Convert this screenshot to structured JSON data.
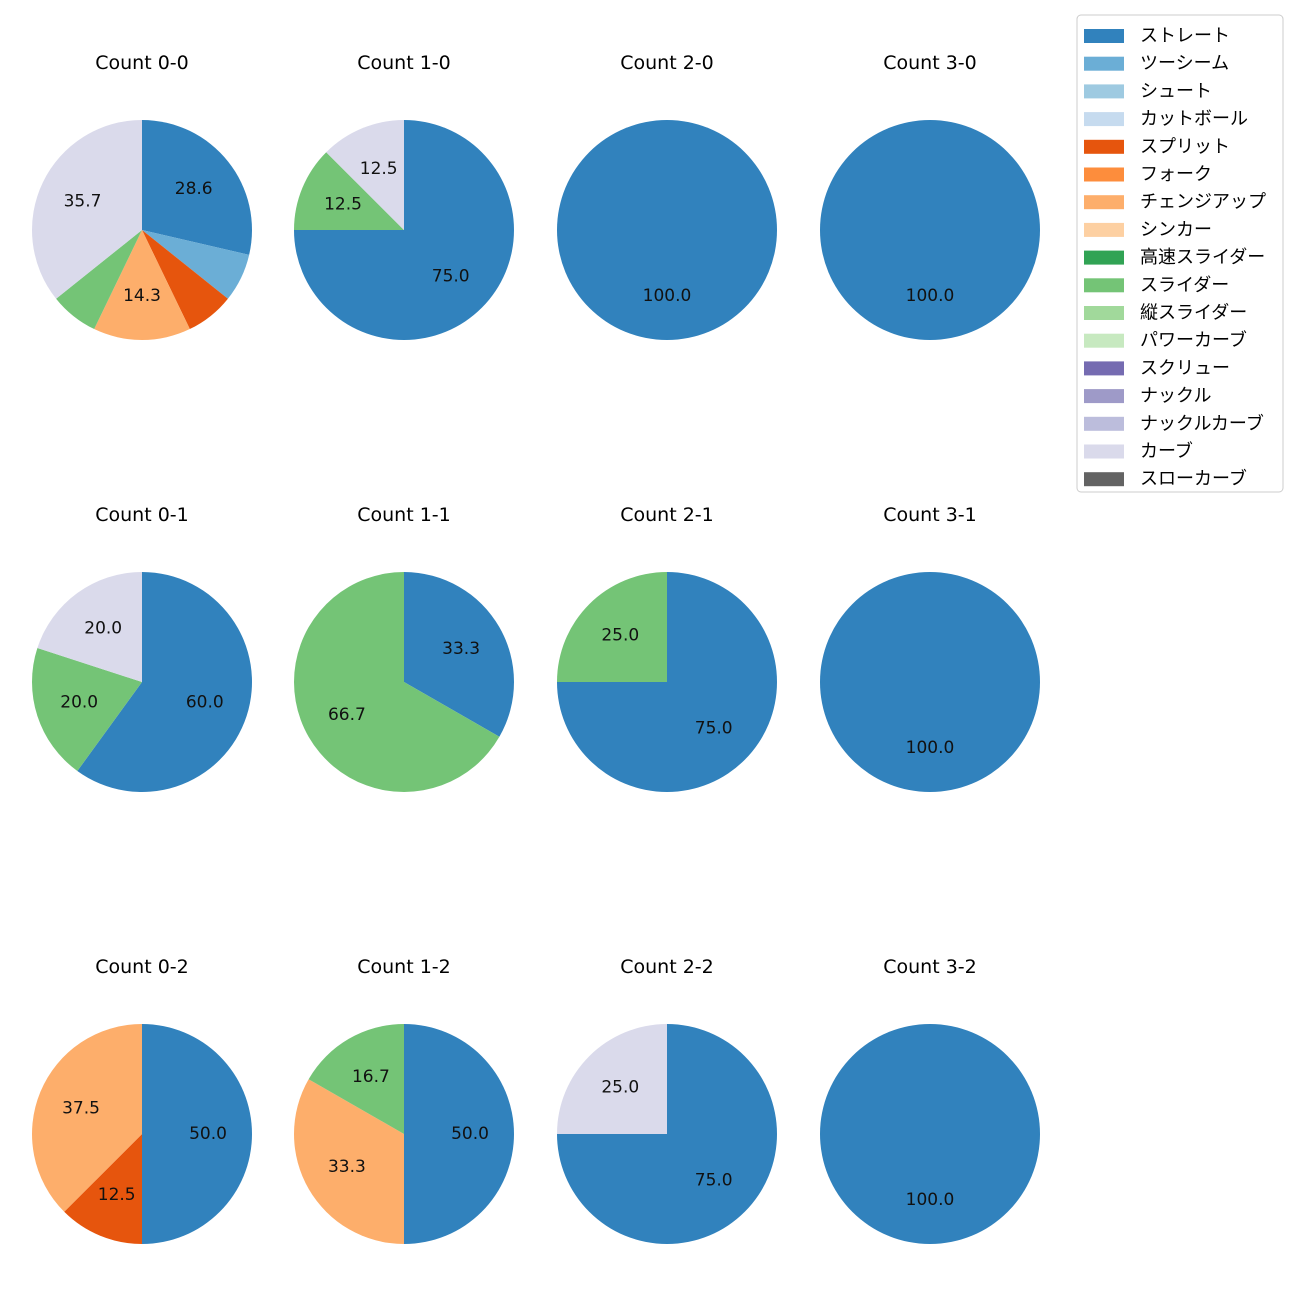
{
  "chart_data": {
    "type": "pie",
    "start_angle": "top, clockwise",
    "label_format": "percent, one decimal",
    "legend_position": "top-right",
    "legend": [
      {
        "name": "ストレート",
        "color": "#3182bd"
      },
      {
        "name": "ツーシーム",
        "color": "#6baed6"
      },
      {
        "name": "シュート",
        "color": "#9ecae1"
      },
      {
        "name": "カットボール",
        "color": "#c6dbef"
      },
      {
        "name": "スプリット",
        "color": "#e6550d"
      },
      {
        "name": "フォーク",
        "color": "#fd8d3c"
      },
      {
        "name": "チェンジアップ",
        "color": "#fdae6b"
      },
      {
        "name": "シンカー",
        "color": "#fdd0a2"
      },
      {
        "name": "高速スライダー",
        "color": "#31a354"
      },
      {
        "name": "スライダー",
        "color": "#74c476"
      },
      {
        "name": "縦スライダー",
        "color": "#a1d99b"
      },
      {
        "name": "パワーカーブ",
        "color": "#c7e9c0"
      },
      {
        "name": "スクリュー",
        "color": "#756bb1"
      },
      {
        "name": "ナックル",
        "color": "#9e9ac8"
      },
      {
        "name": "ナックルカーブ",
        "color": "#bcbddc"
      },
      {
        "name": "カーブ",
        "color": "#dadaeb"
      },
      {
        "name": "スローカーブ",
        "color": "#636363"
      }
    ],
    "charts": [
      {
        "title": "Count 0-0",
        "slices": [
          {
            "pitch": "ストレート",
            "value": 28.6,
            "label": "28.6"
          },
          {
            "pitch": "ツーシーム",
            "value": 7.1,
            "label": ""
          },
          {
            "pitch": "スプリット",
            "value": 7.1,
            "label": ""
          },
          {
            "pitch": "チェンジアップ",
            "value": 14.3,
            "label": "14.3"
          },
          {
            "pitch": "スライダー",
            "value": 7.1,
            "label": ""
          },
          {
            "pitch": "カーブ",
            "value": 35.7,
            "label": "35.7"
          }
        ]
      },
      {
        "title": "Count 1-0",
        "slices": [
          {
            "pitch": "ストレート",
            "value": 75.0,
            "label": "75.0"
          },
          {
            "pitch": "スライダー",
            "value": 12.5,
            "label": "12.5"
          },
          {
            "pitch": "カーブ",
            "value": 12.5,
            "label": "12.5"
          }
        ]
      },
      {
        "title": "Count 2-0",
        "slices": [
          {
            "pitch": "ストレート",
            "value": 100.0,
            "label": "100.0"
          }
        ]
      },
      {
        "title": "Count 3-0",
        "slices": [
          {
            "pitch": "ストレート",
            "value": 100.0,
            "label": "100.0"
          }
        ]
      },
      {
        "title": "Count 0-1",
        "slices": [
          {
            "pitch": "ストレート",
            "value": 60.0,
            "label": "60.0"
          },
          {
            "pitch": "スライダー",
            "value": 20.0,
            "label": "20.0"
          },
          {
            "pitch": "カーブ",
            "value": 20.0,
            "label": "20.0"
          }
        ]
      },
      {
        "title": "Count 1-1",
        "slices": [
          {
            "pitch": "ストレート",
            "value": 33.3,
            "label": "33.3"
          },
          {
            "pitch": "スライダー",
            "value": 66.7,
            "label": "66.7"
          }
        ]
      },
      {
        "title": "Count 2-1",
        "slices": [
          {
            "pitch": "ストレート",
            "value": 75.0,
            "label": "75.0"
          },
          {
            "pitch": "スライダー",
            "value": 25.0,
            "label": "25.0"
          }
        ]
      },
      {
        "title": "Count 3-1",
        "slices": [
          {
            "pitch": "ストレート",
            "value": 100.0,
            "label": "100.0"
          }
        ]
      },
      {
        "title": "Count 0-2",
        "slices": [
          {
            "pitch": "ストレート",
            "value": 50.0,
            "label": "50.0"
          },
          {
            "pitch": "スプリット",
            "value": 12.5,
            "label": "12.5"
          },
          {
            "pitch": "チェンジアップ",
            "value": 37.5,
            "label": "37.5"
          }
        ]
      },
      {
        "title": "Count 1-2",
        "slices": [
          {
            "pitch": "ストレート",
            "value": 50.0,
            "label": "50.0"
          },
          {
            "pitch": "チェンジアップ",
            "value": 33.3,
            "label": "33.3"
          },
          {
            "pitch": "スライダー",
            "value": 16.7,
            "label": "16.7"
          }
        ]
      },
      {
        "title": "Count 2-2",
        "slices": [
          {
            "pitch": "ストレート",
            "value": 75.0,
            "label": "75.0"
          },
          {
            "pitch": "カーブ",
            "value": 25.0,
            "label": "25.0"
          }
        ]
      },
      {
        "title": "Count 3-2",
        "slices": [
          {
            "pitch": "ストレート",
            "value": 100.0,
            "label": "100.0"
          }
        ]
      }
    ]
  }
}
